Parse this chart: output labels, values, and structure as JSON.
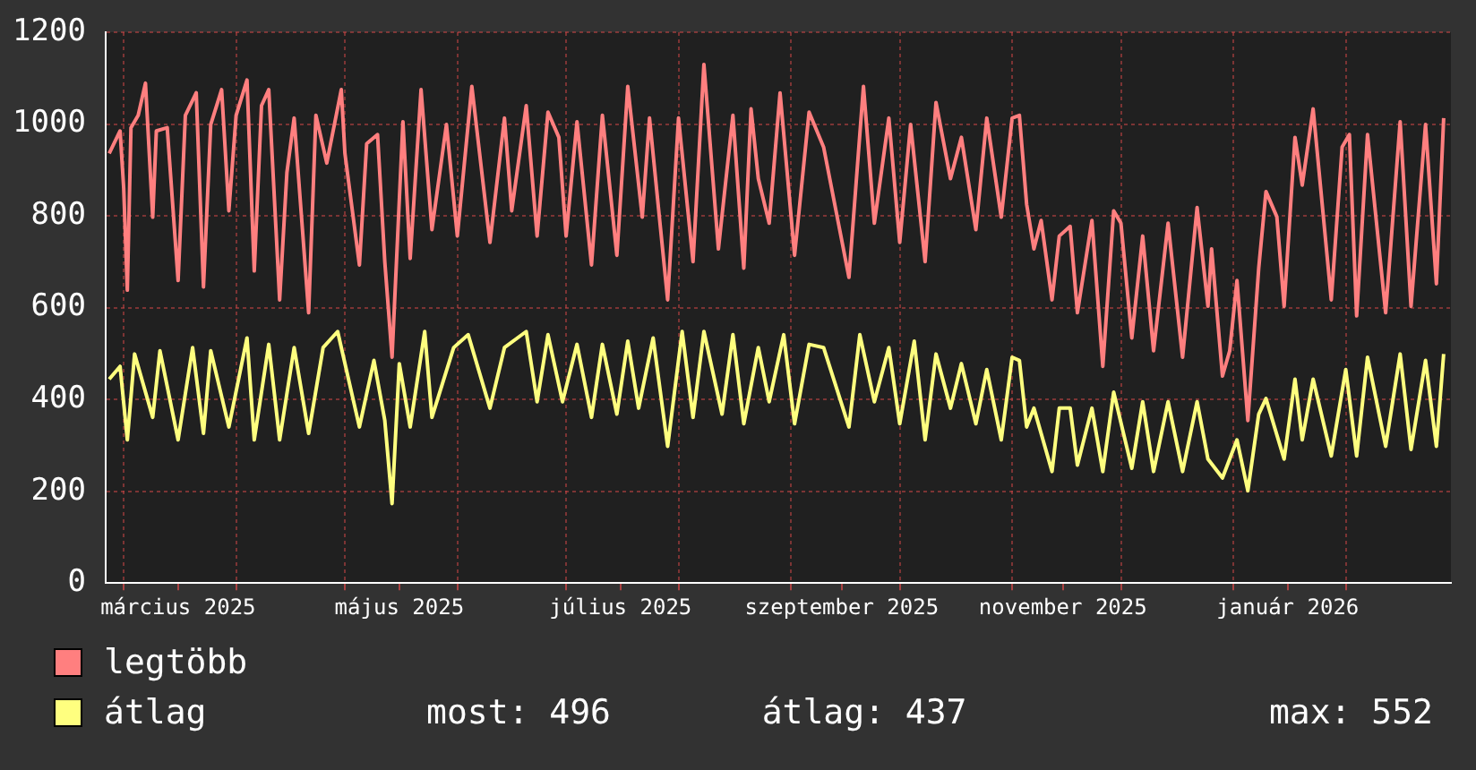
{
  "chart_data": {
    "type": "line",
    "legend": "bottom left",
    "grid": true,
    "marker": "none",
    "line_style": "solid",
    "xlim": [
      "2025-02-24",
      "2026-03-02"
    ],
    "ylim": [
      0,
      1200
    ],
    "yticks": [
      0,
      200,
      400,
      600,
      800,
      1000,
      1200
    ],
    "xticks": [
      {
        "value": "2025-03-01",
        "label": null
      },
      {
        "value": "2025-03-16",
        "label": "március 2025"
      },
      {
        "value": "2025-04-01",
        "label": null
      },
      {
        "value": "2025-05-01",
        "label": null
      },
      {
        "value": "2025-05-16",
        "label": "május 2025"
      },
      {
        "value": "2025-06-01",
        "label": null
      },
      {
        "value": "2025-07-01",
        "label": null
      },
      {
        "value": "2025-07-16",
        "label": "július 2025"
      },
      {
        "value": "2025-08-01",
        "label": null
      },
      {
        "value": "2025-09-01",
        "label": null
      },
      {
        "value": "2025-09-15",
        "label": "szeptember 2025"
      },
      {
        "value": "2025-10-01",
        "label": null
      },
      {
        "value": "2025-11-01",
        "label": null
      },
      {
        "value": "2025-11-15",
        "label": "november 2025"
      },
      {
        "value": "2025-12-01",
        "label": null
      },
      {
        "value": "2026-01-01",
        "label": null
      },
      {
        "value": "2026-01-16",
        "label": "január 2026"
      },
      {
        "value": "2026-02-01",
        "label": null
      }
    ],
    "annotations": [
      "most: 496",
      "átlag: 437",
      "max: 552"
    ],
    "series": [
      {
        "name": "legtöbb",
        "color": "#ff7f7f",
        "x": [
          "2025-02-25",
          "2025-02-28",
          "2025-03-01",
          "2025-03-02",
          "2025-03-03",
          "2025-03-05",
          "2025-03-07",
          "2025-03-09",
          "2025-03-10",
          "2025-03-13",
          "2025-03-16",
          "2025-03-18",
          "2025-03-21",
          "2025-03-23",
          "2025-03-25",
          "2025-03-28",
          "2025-03-30",
          "2025-04-01",
          "2025-04-04",
          "2025-04-06",
          "2025-04-08",
          "2025-04-10",
          "2025-04-13",
          "2025-04-15",
          "2025-04-17",
          "2025-04-21",
          "2025-04-23",
          "2025-04-26",
          "2025-04-30",
          "2025-05-01",
          "2025-05-05",
          "2025-05-07",
          "2025-05-10",
          "2025-05-12",
          "2025-05-14",
          "2025-05-17",
          "2025-05-19",
          "2025-05-22",
          "2025-05-25",
          "2025-05-29",
          "2025-06-01",
          "2025-06-05",
          "2025-06-10",
          "2025-06-14",
          "2025-06-16",
          "2025-06-20",
          "2025-06-23",
          "2025-06-26",
          "2025-06-29",
          "2025-07-01",
          "2025-07-04",
          "2025-07-08",
          "2025-07-11",
          "2025-07-15",
          "2025-07-18",
          "2025-07-22",
          "2025-07-24",
          "2025-07-29",
          "2025-08-01",
          "2025-08-05",
          "2025-08-08",
          "2025-08-12",
          "2025-08-16",
          "2025-08-19",
          "2025-08-21",
          "2025-08-23",
          "2025-08-26",
          "2025-08-29",
          "2025-09-02",
          "2025-09-06",
          "2025-09-10",
          "2025-09-17",
          "2025-09-21",
          "2025-09-24",
          "2025-09-28",
          "2025-10-01",
          "2025-10-04",
          "2025-10-08",
          "2025-10-11",
          "2025-10-15",
          "2025-10-18",
          "2025-10-22",
          "2025-10-25",
          "2025-10-29",
          "2025-11-01",
          "2025-11-03",
          "2025-11-05",
          "2025-11-07",
          "2025-11-09",
          "2025-11-12",
          "2025-11-14",
          "2025-11-17",
          "2025-11-19",
          "2025-11-23",
          "2025-11-26",
          "2025-11-29",
          "2025-12-01",
          "2025-12-04",
          "2025-12-07",
          "2025-12-10",
          "2025-12-14",
          "2025-12-18",
          "2025-12-22",
          "2025-12-25",
          "2025-12-26",
          "2025-12-29",
          "2025-12-31",
          "2026-01-02",
          "2026-01-05",
          "2026-01-08",
          "2026-01-10",
          "2026-01-13",
          "2026-01-15",
          "2026-01-18",
          "2026-01-20",
          "2026-01-23",
          "2026-01-25",
          "2026-01-28",
          "2026-01-31",
          "2026-02-02",
          "2026-02-04",
          "2026-02-07",
          "2026-02-12",
          "2026-02-16",
          "2026-02-19",
          "2026-02-23",
          "2026-02-26",
          "2026-02-28"
        ],
        "values": [
          936,
          985,
          860,
          638,
          992,
          1019,
          1089,
          797,
          985,
          992,
          659,
          1019,
          1068,
          645,
          999,
          1075,
          811,
          1019,
          1096,
          680,
          1040,
          1075,
          617,
          894,
          1013,
          589,
          1019,
          915,
          1075,
          936,
          693,
          957,
          977,
          700,
          492,
          1005,
          707,
          1075,
          770,
          999,
          756,
          1082,
          742,
          1013,
          811,
          1040,
          756,
          1026,
          971,
          756,
          1005,
          693,
          1019,
          714,
          1082,
          797,
          1013,
          617,
          1013,
          700,
          1130,
          728,
          1019,
          686,
          1033,
          881,
          784,
          1068,
          714,
          1026,
          950,
          666,
          1082,
          784,
          1013,
          742,
          999,
          700,
          1047,
          881,
          971,
          770,
          1013,
          797,
          1013,
          1019,
          825,
          728,
          790,
          617,
          756,
          777,
          589,
          790,
          472,
          811,
          784,
          534,
          756,
          506,
          784,
          492,
          818,
          603,
          728,
          451,
          506,
          659,
          354,
          686,
          853,
          798,
          603,
          971,
          867,
          1033,
          867,
          617,
          950,
          977,
          582,
          977,
          589,
          1005,
          603,
          999,
          652,
          1013
        ]
      },
      {
        "name": "átlag",
        "color": "#ffff7f",
        "x": [
          "2025-02-25",
          "2025-02-28",
          "2025-03-02",
          "2025-03-04",
          "2025-03-09",
          "2025-03-11",
          "2025-03-16",
          "2025-03-20",
          "2025-03-23",
          "2025-03-25",
          "2025-03-30",
          "2025-04-04",
          "2025-04-06",
          "2025-04-10",
          "2025-04-13",
          "2025-04-17",
          "2025-04-21",
          "2025-04-25",
          "2025-04-29",
          "2025-05-05",
          "2025-05-09",
          "2025-05-12",
          "2025-05-14",
          "2025-05-16",
          "2025-05-19",
          "2025-05-23",
          "2025-05-25",
          "2025-05-31",
          "2025-06-04",
          "2025-06-10",
          "2025-06-14",
          "2025-06-20",
          "2025-06-23",
          "2025-06-26",
          "2025-06-30",
          "2025-07-04",
          "2025-07-08",
          "2025-07-11",
          "2025-07-15",
          "2025-07-18",
          "2025-07-21",
          "2025-07-25",
          "2025-07-29",
          "2025-08-02",
          "2025-08-05",
          "2025-08-08",
          "2025-08-13",
          "2025-08-16",
          "2025-08-19",
          "2025-08-23",
          "2025-08-26",
          "2025-08-30",
          "2025-09-02",
          "2025-09-06",
          "2025-09-10",
          "2025-09-17",
          "2025-09-20",
          "2025-09-24",
          "2025-09-28",
          "2025-10-01",
          "2025-10-05",
          "2025-10-08",
          "2025-10-11",
          "2025-10-15",
          "2025-10-18",
          "2025-10-22",
          "2025-10-25",
          "2025-10-29",
          "2025-11-01",
          "2025-11-03",
          "2025-11-05",
          "2025-11-07",
          "2025-11-12",
          "2025-11-14",
          "2025-11-17",
          "2025-11-19",
          "2025-11-23",
          "2025-11-26",
          "2025-11-29",
          "2025-12-04",
          "2025-12-07",
          "2025-12-10",
          "2025-12-14",
          "2025-12-18",
          "2025-12-22",
          "2025-12-25",
          "2025-12-29",
          "2026-01-02",
          "2026-01-05",
          "2026-01-08",
          "2026-01-10",
          "2026-01-15",
          "2026-01-18",
          "2026-01-20",
          "2026-01-23",
          "2026-01-28",
          "2026-02-01",
          "2026-02-04",
          "2026-02-07",
          "2026-02-12",
          "2026-02-16",
          "2026-02-19",
          "2026-02-23",
          "2026-02-26",
          "2026-02-28"
        ],
        "values": [
          444,
          472,
          312,
          499,
          361,
          506,
          312,
          513,
          326,
          506,
          340,
          534,
          312,
          520,
          312,
          513,
          326,
          513,
          548,
          340,
          485,
          354,
          173,
          478,
          340,
          548,
          361,
          513,
          541,
          381,
          513,
          548,
          395,
          541,
          395,
          520,
          361,
          520,
          368,
          527,
          381,
          534,
          298,
          548,
          361,
          548,
          368,
          541,
          347,
          513,
          395,
          541,
          347,
          520,
          513,
          340,
          541,
          395,
          513,
          347,
          527,
          312,
          499,
          381,
          478,
          347,
          465,
          312,
          492,
          485,
          340,
          381,
          243,
          381,
          381,
          257,
          381,
          243,
          416,
          250,
          395,
          243,
          395,
          243,
          395,
          270,
          229,
          312,
          201,
          368,
          402,
          270,
          444,
          312,
          444,
          277,
          465,
          277,
          492,
          298,
          499,
          291,
          485,
          298,
          499
        ]
      }
    ]
  }
}
